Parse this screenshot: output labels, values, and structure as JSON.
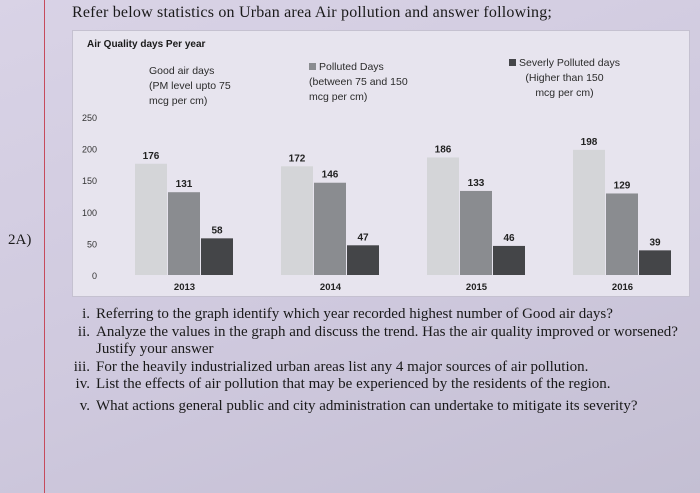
{
  "page": {
    "question_number": "2A)",
    "heading": "Refer below statistics on Urban area Air pollution and answer following;"
  },
  "chart_data": {
    "type": "bar",
    "title": "Air Quality days Per year",
    "categories": [
      "2013",
      "2014",
      "2015",
      "2016"
    ],
    "series": [
      {
        "name": "Good air days (PM level upto 75 mcg per cm)",
        "legend_lines": [
          "Good air days",
          "(PM level upto 75",
          "mcg per cm)"
        ],
        "color": "#d4d5d8",
        "values": [
          176,
          172,
          186,
          198
        ]
      },
      {
        "name": "Polluted Days (between 75 and 150 mcg per cm)",
        "legend_lines": [
          "Polluted Days",
          "(between 75 and 150",
          "mcg per cm)"
        ],
        "color": "#8a8c90",
        "values": [
          131,
          146,
          133,
          129
        ]
      },
      {
        "name": "Severly Polluted days (Higher than 150 mcg per cm)",
        "legend_lines": [
          "Severly Polluted days",
          "(Higher than 150",
          "mcg per cm)"
        ],
        "color": "#444548",
        "values": [
          58,
          47,
          46,
          39
        ]
      }
    ],
    "yticks": [
      0,
      50,
      100,
      150,
      200,
      250
    ],
    "ylim": [
      0,
      250
    ],
    "xlabel": "",
    "ylabel": "",
    "grid": false,
    "legend_position": "top"
  },
  "questions": [
    {
      "roman": "i.",
      "text": "Referring to the graph identify which year recorded highest number of Good air days?"
    },
    {
      "roman": "ii.",
      "text": "Analyze the values in the graph and discuss the trend. Has the air quality improved or worsened? Justify your answer"
    },
    {
      "roman": "iii.",
      "text": "For the heavily industrialized urban areas list any 4 major sources of air pollution."
    },
    {
      "roman": "iv.",
      "text": "List the effects of air pollution that may be experienced by the residents of the region."
    },
    {
      "roman": "v.",
      "text": "What actions general public and city administration can undertake to mitigate its severity?"
    }
  ]
}
